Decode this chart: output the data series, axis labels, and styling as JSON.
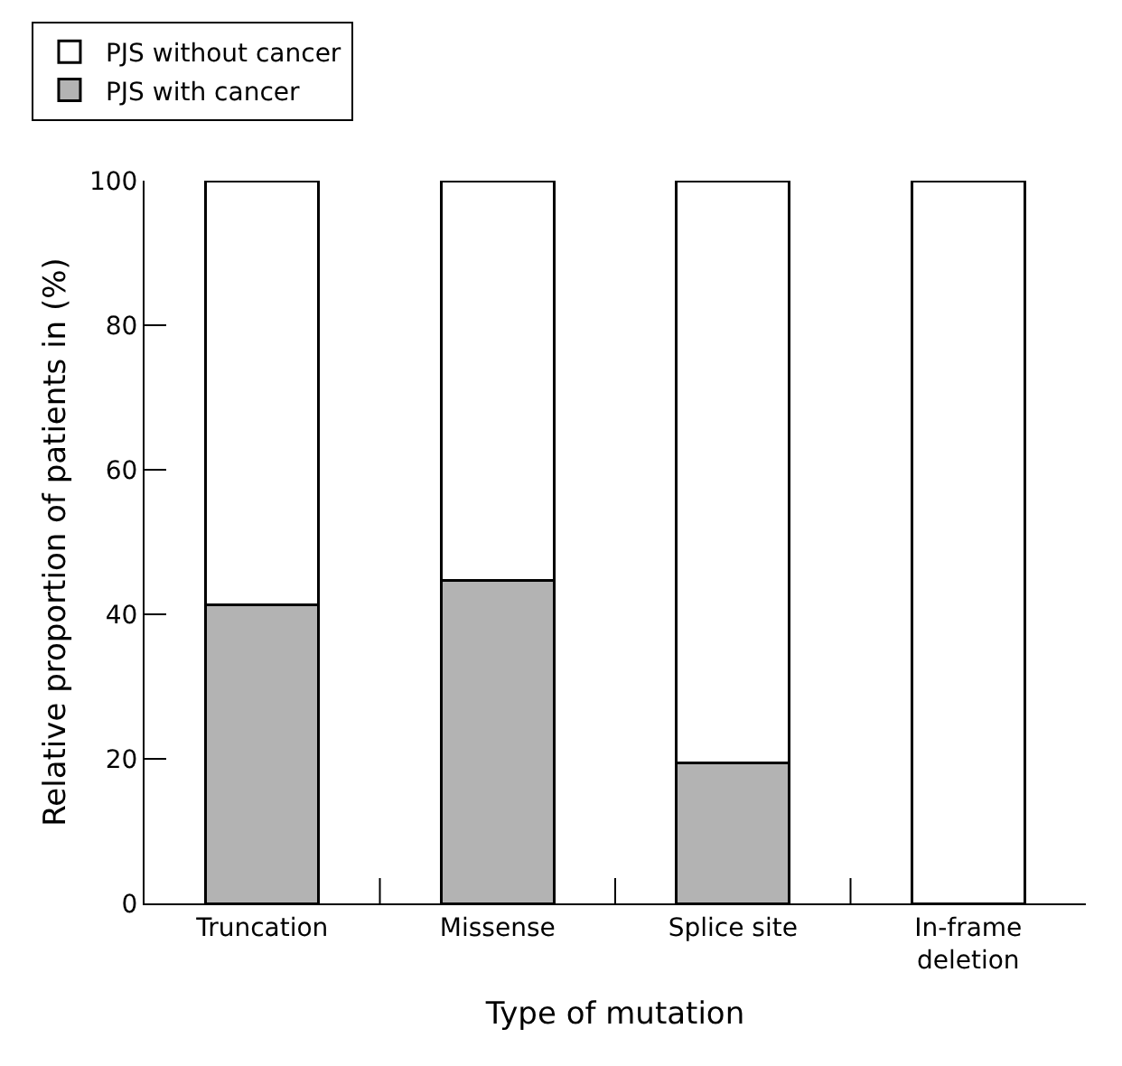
{
  "chart_data": {
    "type": "bar",
    "stacked": true,
    "xlabel": "Type of mutation",
    "ylabel": "Relative proportion of patients in (%)",
    "categories": [
      "Truncation",
      "Missense",
      "Splice site",
      "In-frame deletion"
    ],
    "series": [
      {
        "name": "PJS with cancer",
        "color": "#b3b3b3",
        "values": [
          41.3,
          44.7,
          19.5,
          0
        ]
      },
      {
        "name": "PJS without cancer",
        "color": "#ffffff",
        "values": [
          58.7,
          55.3,
          80.5,
          100
        ]
      }
    ],
    "ylim": [
      0,
      100
    ],
    "yticks": [
      0,
      20,
      40,
      60,
      80,
      100
    ],
    "grid": false,
    "legend": "top left"
  }
}
